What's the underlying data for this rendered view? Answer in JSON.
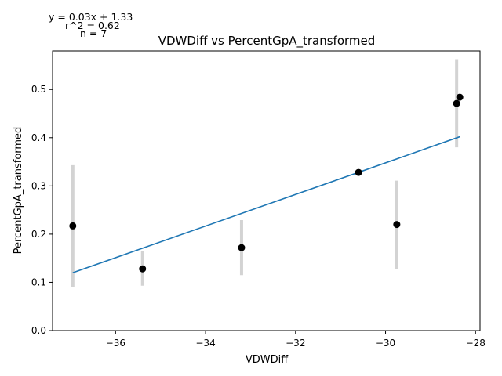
{
  "chart_data": {
    "type": "scatter",
    "title": "VDWDiff vs PercentGpA_transformed",
    "xlabel": "VDWDiff",
    "ylabel": "PercentGpA_transformed",
    "xlim": [
      -37.4,
      -27.9
    ],
    "ylim": [
      0.0,
      0.58
    ],
    "x_ticks": [
      -36,
      -34,
      -32,
      -30,
      -28
    ],
    "x_tick_labels": [
      "−36",
      "−34",
      "−32",
      "−30",
      "−28"
    ],
    "y_ticks": [
      0.0,
      0.1,
      0.2,
      0.3,
      0.4,
      0.5
    ],
    "y_tick_labels": [
      "0.0",
      "0.1",
      "0.2",
      "0.3",
      "0.4",
      "0.5"
    ],
    "grid": false,
    "annotations": {
      "equation": "y = 0.03x + 1.33",
      "r_squared": "r^2 = 0.62",
      "n": "n = 7"
    },
    "points": [
      {
        "x": -36.95,
        "y": 0.217,
        "err_low": 0.09,
        "err_high": 0.343
      },
      {
        "x": -35.4,
        "y": 0.128,
        "err_low": 0.093,
        "err_high": 0.165
      },
      {
        "x": -33.2,
        "y": 0.172,
        "err_low": 0.115,
        "err_high": 0.229
      },
      {
        "x": -30.6,
        "y": 0.328,
        "err_low": 0.328,
        "err_high": 0.328
      },
      {
        "x": -29.75,
        "y": 0.22,
        "err_low": 0.128,
        "err_high": 0.311
      },
      {
        "x": -28.42,
        "y": 0.471,
        "err_low": 0.38,
        "err_high": 0.563
      },
      {
        "x": -28.35,
        "y": 0.484,
        "err_low": 0.484,
        "err_high": 0.484
      }
    ],
    "fit_line": {
      "x": [
        -36.95,
        -28.35
      ],
      "y": [
        0.12,
        0.402
      ]
    },
    "colors": {
      "points": "#000000",
      "error_bars": "#d3d3d3",
      "fit_line": "#1f77b4"
    }
  }
}
